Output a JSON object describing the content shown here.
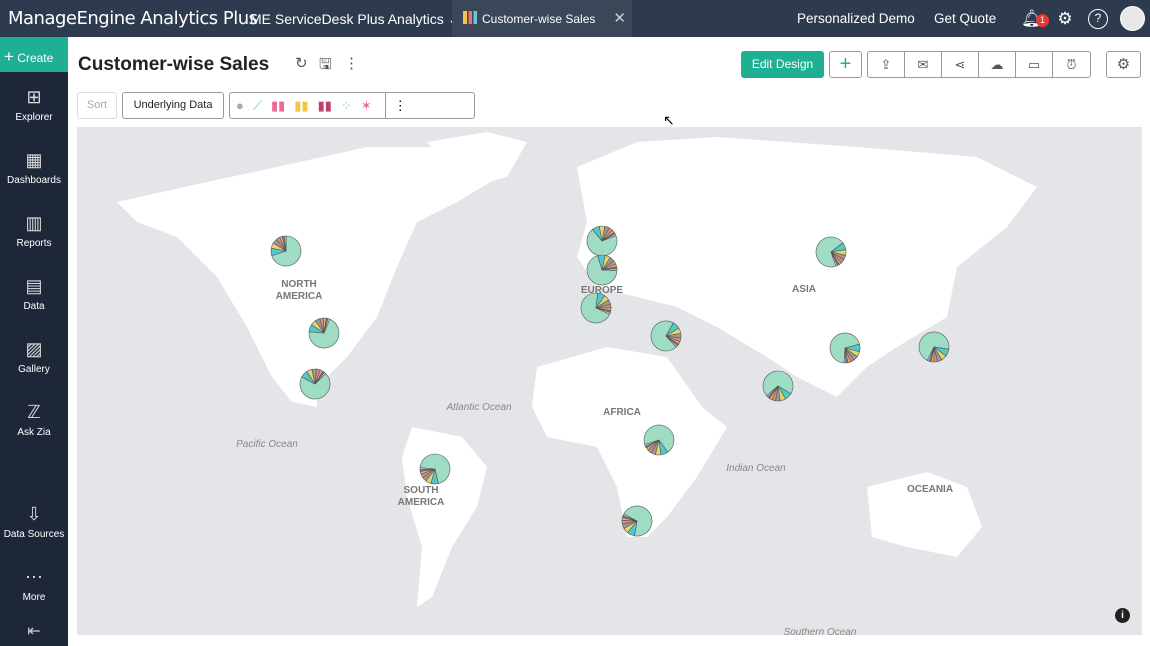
{
  "topbar": {
    "brand": "ManageEngine Analytics Plus",
    "workspace": "ME ServiceDesk Plus Analytics",
    "tab": "Customer-wise Sales",
    "links": [
      "Personalized Demo",
      "Get Quote"
    ],
    "notifications": "1",
    "icons": [
      "bell-icon",
      "gear-icon",
      "help-icon",
      "avatar"
    ]
  },
  "sidebar": {
    "create": "Create",
    "items": [
      {
        "label": "Explorer",
        "icon": "explorer-icon"
      },
      {
        "label": "Dashboards",
        "icon": "dashboards-icon"
      },
      {
        "label": "Reports",
        "icon": "reports-icon"
      },
      {
        "label": "Data",
        "icon": "data-icon"
      },
      {
        "label": "Gallery",
        "icon": "gallery-icon"
      },
      {
        "label": "Ask Zia",
        "icon": "zia-icon"
      },
      {
        "label": "Data Sources",
        "icon": "data-sources-icon"
      },
      {
        "label": "More",
        "icon": "more-icon"
      }
    ]
  },
  "header": {
    "title": "Customer-wise Sales",
    "edit_design": "Edit Design"
  },
  "toolbar": {
    "sort": "Sort",
    "underlying": "Underlying Data",
    "chart_types": [
      "pie",
      "line",
      "bar",
      "stacked-bar",
      "combo",
      "scatter",
      "map"
    ]
  },
  "map": {
    "labels": [
      "NORTH AMERICA",
      "EUROPE",
      "ASIA",
      "AFRICA",
      "SOUTH AMERICA",
      "OCEANIA",
      "Atlantic Ocean",
      "Pacific Ocean",
      "Indian Ocean",
      "Southern Ocean"
    ],
    "pie_colors": [
      "#9fdcc4",
      "#4fc9c9",
      "#e6d36a",
      "#9a9a9a",
      "#d98a8a",
      "#f0b050",
      "#6a7fa8",
      "#c9c3df"
    ]
  }
}
